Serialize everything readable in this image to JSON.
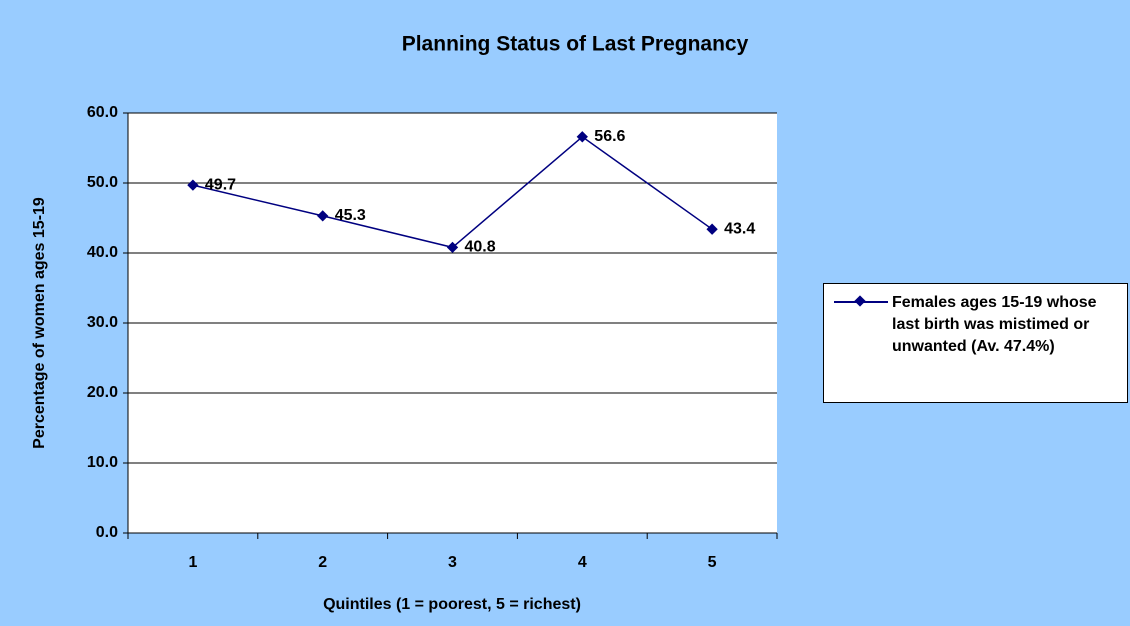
{
  "chart_data": {
    "type": "line",
    "title": "Planning Status of Last Pregnancy",
    "x_label": "Quintiles (1 = poorest, 5 = richest)",
    "y_label": "Percentage of women ages 15-19",
    "categories": [
      "1",
      "2",
      "3",
      "4",
      "5"
    ],
    "series": [
      {
        "name": "Females ages 15-19 whose last birth was mistimed or unwanted (Av. 47.4%)",
        "color": "#000080",
        "values": [
          49.7,
          45.3,
          40.8,
          56.6,
          43.4
        ]
      }
    ],
    "ylim": [
      0,
      60
    ],
    "yticks": [
      {
        "value": 0,
        "label": "0.0"
      },
      {
        "value": 10,
        "label": "10.0"
      },
      {
        "value": 20,
        "label": "20.0"
      },
      {
        "value": 30,
        "label": "30.0"
      },
      {
        "value": 40,
        "label": "40.0"
      },
      {
        "value": 50,
        "label": "50.0"
      },
      {
        "value": 60,
        "label": "60.0"
      }
    ],
    "grid": true,
    "legend": "right"
  }
}
